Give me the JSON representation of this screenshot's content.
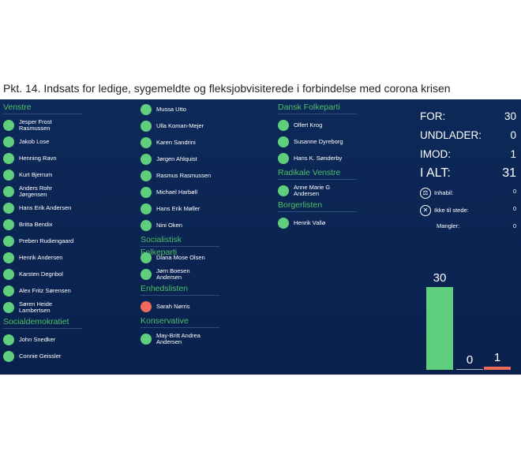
{
  "title": "Pkt. 14. Indsats for ledige, sygemeldte og fleksjobvisiterede i forbindelse med corona krisen",
  "columns": [
    {
      "groups": [
        {
          "party": "Venstre",
          "members": [
            {
              "name": "Jesper Frost\nRasmussen",
              "vote": "for"
            },
            {
              "name": "Jakob Lose",
              "vote": "for"
            },
            {
              "name": "Henning Ravn",
              "vote": "for"
            },
            {
              "name": "Kurt Bjerrum",
              "vote": "for"
            },
            {
              "name": "Anders Rohr\nJørgensen",
              "vote": "for"
            },
            {
              "name": "Hans Erik Andersen",
              "vote": "for"
            },
            {
              "name": "Britta Bendix",
              "vote": "for"
            },
            {
              "name": "Preben Rudiengaard",
              "vote": "for"
            },
            {
              "name": "Henrik Andersen",
              "vote": "for"
            },
            {
              "name": "Karsten Degnbol",
              "vote": "for"
            },
            {
              "name": "Alex Fritz Sørensen",
              "vote": "for"
            },
            {
              "name": "Søren Heide\nLambertsen",
              "vote": "for"
            }
          ]
        },
        {
          "party": "Socialdemokratiet",
          "members": [
            {
              "name": "John Snedker",
              "vote": "for"
            },
            {
              "name": "Connie Geissler",
              "vote": "for"
            }
          ]
        }
      ]
    },
    {
      "groups": [
        {
          "party": "",
          "members": [
            {
              "name": "Mussa Utto",
              "vote": "for"
            },
            {
              "name": "Ulla Koman-Mejer",
              "vote": "for"
            },
            {
              "name": "Karen Sandrini",
              "vote": "for"
            },
            {
              "name": "Jørgen Ahlquist",
              "vote": "for"
            },
            {
              "name": "Rasmus Rasmussen",
              "vote": "for"
            },
            {
              "name": "Michael Harbøll",
              "vote": "for"
            },
            {
              "name": "Hans Erik Møller",
              "vote": "for"
            },
            {
              "name": "Nini Oken",
              "vote": "for"
            }
          ]
        },
        {
          "party": "Socialistisk Folkeparti",
          "members": [
            {
              "name": "Diana Mose Olsen",
              "vote": "for"
            },
            {
              "name": "Jørn Boesen\nAndersen",
              "vote": "for"
            }
          ]
        },
        {
          "party": "Enhedslisten",
          "members": [
            {
              "name": "Sarah Nørris",
              "vote": "imod"
            }
          ]
        },
        {
          "party": "Konservative",
          "members": [
            {
              "name": "May-Britt Andrea\nAndersen",
              "vote": "for"
            }
          ]
        }
      ]
    },
    {
      "groups": [
        {
          "party": "Dansk Folkeparti",
          "members": [
            {
              "name": "Olfert Krog",
              "vote": "for"
            },
            {
              "name": "Susanne Dyreborg",
              "vote": "for"
            },
            {
              "name": "Hans K. Sønderby",
              "vote": "for"
            }
          ]
        },
        {
          "party": "Radikale Venstre",
          "members": [
            {
              "name": "Anne Marie G\nAndersen",
              "vote": "for"
            }
          ]
        },
        {
          "party": "Borgerlisten",
          "members": [
            {
              "name": "Henrik Vallø",
              "vote": "for"
            }
          ]
        }
      ]
    }
  ],
  "tally": {
    "for_label": "FOR:",
    "for_value": "30",
    "abstain_label": "UNDLADER:",
    "abstain_value": "0",
    "against_label": "IMOD:",
    "against_value": "1",
    "total_label": "I ALT:",
    "total_value": "31",
    "inhabil_label": "Inhabil:",
    "inhabil_value": "0",
    "absent_label": "Ikke til stede:",
    "absent_value": "0",
    "missing_label": "Mangler:",
    "missing_value": "0"
  },
  "bars": [
    {
      "label": "30",
      "value": 30,
      "color": "#5fcf7d"
    },
    {
      "label": "0",
      "value": 0,
      "color": "#b0b8c8"
    },
    {
      "label": "1",
      "value": 1,
      "color": "#ef6a5a"
    }
  ],
  "colors": {
    "for": "#5fcf7d",
    "imod": "#ef6a5a",
    "party": "#4fbf68"
  }
}
